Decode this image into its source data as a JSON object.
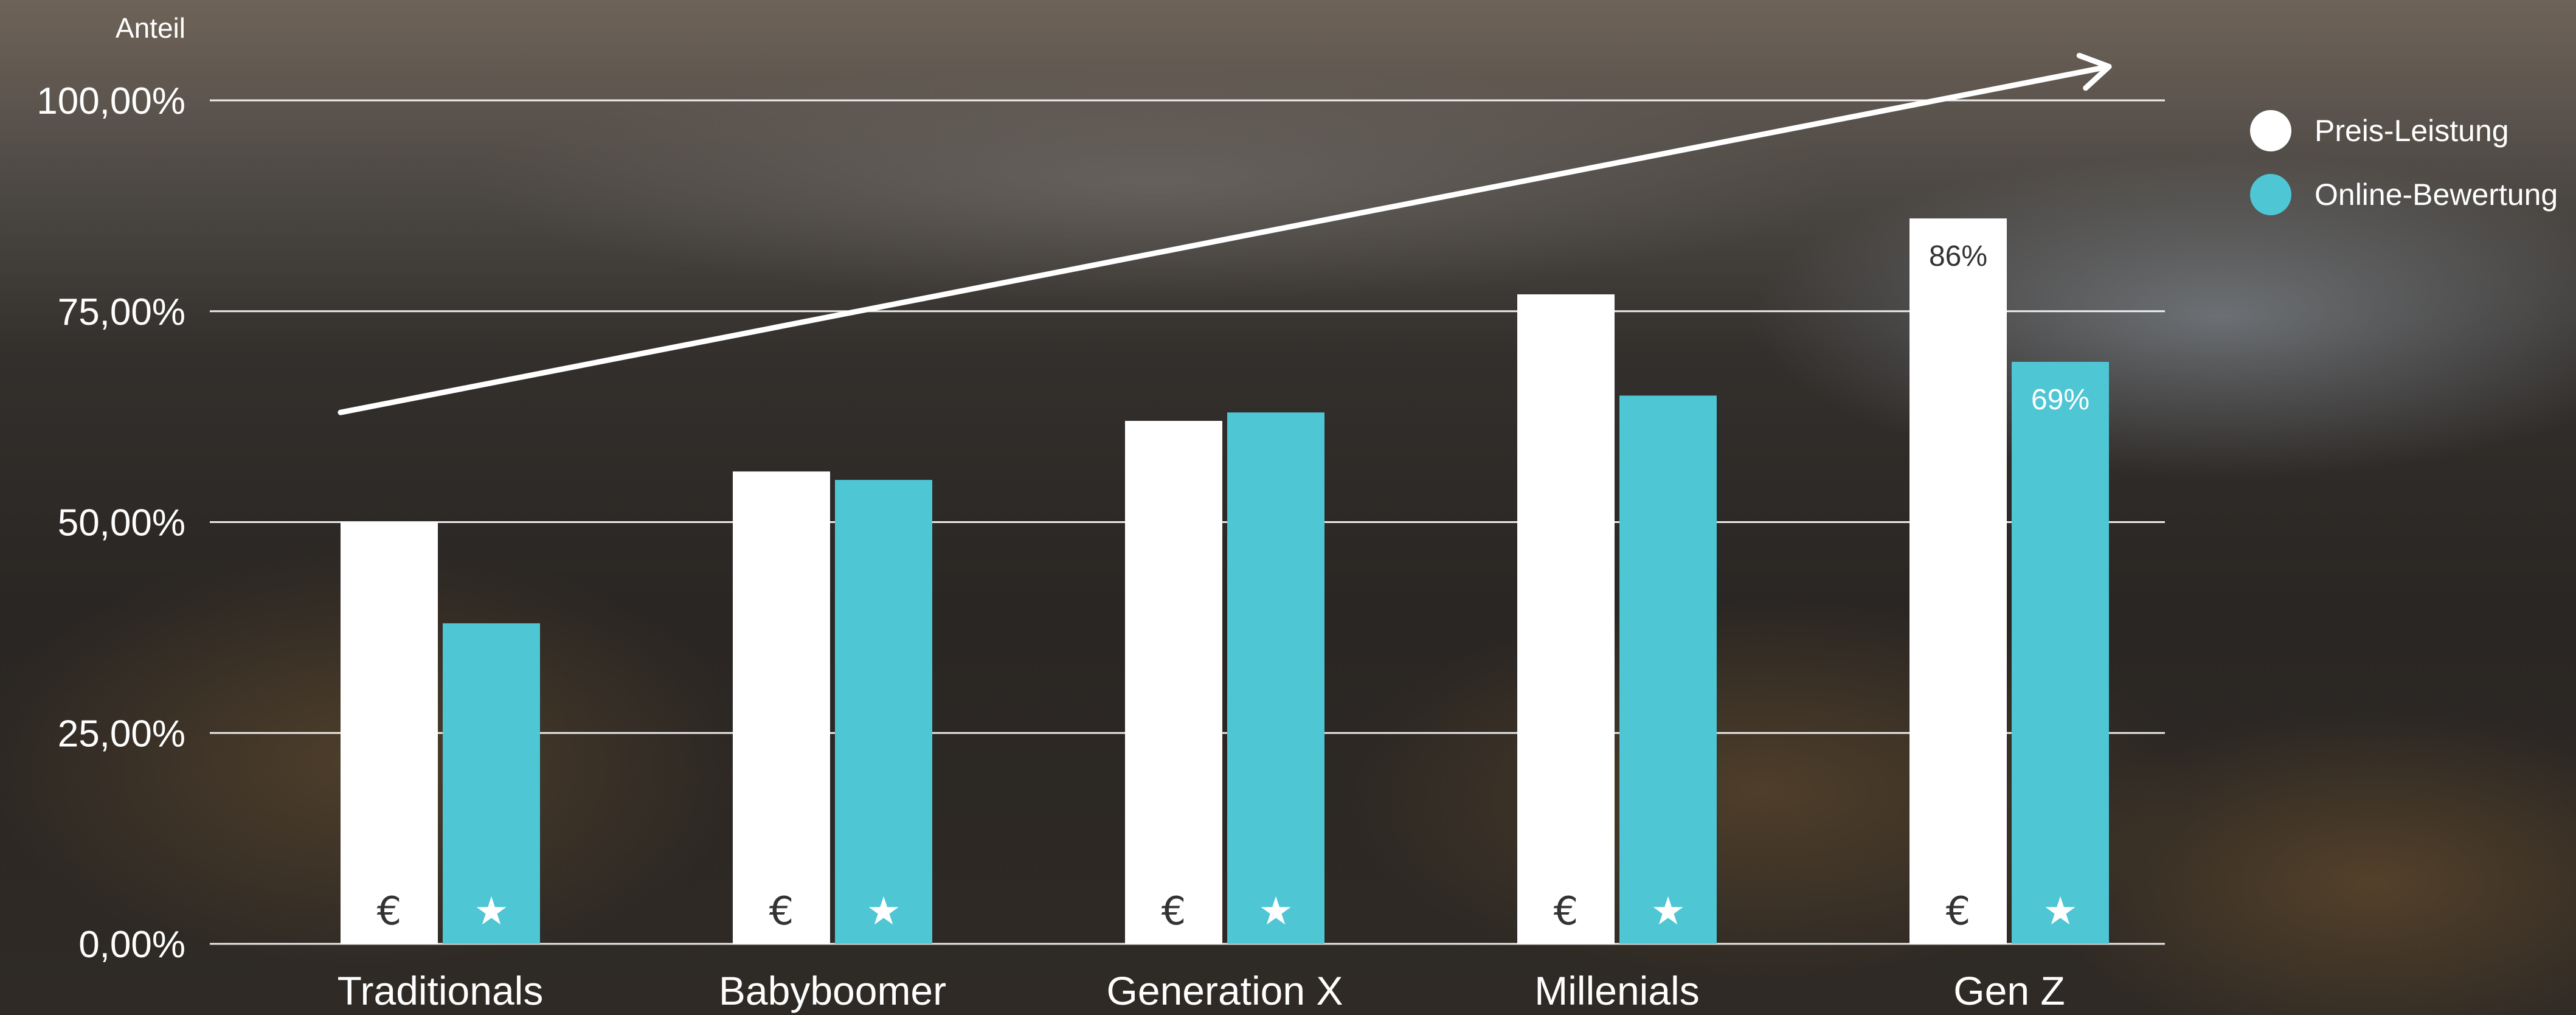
{
  "colors": {
    "preis": "#ffffff",
    "online": "#4ec6d4",
    "grid": "#ffffff",
    "text": "#ffffff",
    "icon_on_white": "#333333",
    "icon_on_teal": "#ffffff"
  },
  "chart_data": {
    "type": "bar",
    "title": "",
    "xlabel": "",
    "ylabel": "Anteil",
    "ylim": [
      0,
      100
    ],
    "ytick_values": [
      0,
      25,
      50,
      75,
      100
    ],
    "ytick_labels": [
      "0,00%",
      "25,00%",
      "50,00%",
      "75,00%",
      "100,00%"
    ],
    "grid": true,
    "legend_position": "top-right",
    "categories": [
      "Traditionals",
      "Babyboomer",
      "Generation X",
      "Millenials",
      "Gen Z"
    ],
    "series": [
      {
        "name": "Preis-Leistung",
        "values": [
          50,
          56,
          62,
          77,
          86
        ],
        "icon": "euro-icon",
        "icon_glyph": "€",
        "color": "#ffffff"
      },
      {
        "name": "Online-Bewertung",
        "values": [
          38,
          55,
          63,
          65,
          69
        ],
        "icon": "star-icon",
        "icon_glyph": "★",
        "color": "#4ec6d4"
      }
    ],
    "data_labels": [
      {
        "series": 0,
        "category": 4,
        "text": "86%"
      },
      {
        "series": 1,
        "category": 4,
        "text": "69%"
      }
    ],
    "trend_arrow": {
      "from": {
        "category": 0,
        "value": 63
      },
      "to": {
        "category": 4,
        "value": 104
      }
    }
  }
}
